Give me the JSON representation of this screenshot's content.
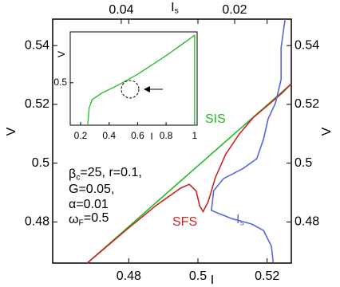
{
  "chart_data": [
    {
      "type": "line",
      "x_label": "I",
      "x2_label": {
        "text": "I",
        "sub": "s"
      },
      "y_label": "V",
      "xlim": [
        0.458,
        0.527
      ],
      "xticks": [
        0.48,
        0.5,
        0.52
      ],
      "x2lim": [
        0.0521,
        0.01
      ],
      "x2ticks": [
        0.04,
        0.02
      ],
      "ylim": [
        0.466,
        0.549
      ],
      "yticks": [
        0.54,
        0.52,
        0.5,
        0.48
      ],
      "series": [
        {
          "name": "SIS",
          "color": "#22bb22",
          "x": [
            0.468,
            0.527
          ],
          "values": [
            0.466,
            0.527
          ]
        },
        {
          "name": "SFS",
          "color": "#cc2222",
          "x": [
            0.468,
            0.48,
            0.488,
            0.492,
            0.495,
            0.4975,
            0.4995,
            0.5005,
            0.5015,
            0.503,
            0.505,
            0.508,
            0.512,
            0.516,
            0.52,
            0.524,
            0.527
          ],
          "values": [
            0.466,
            0.478,
            0.4857,
            0.489,
            0.4915,
            0.4928,
            0.4905,
            0.4855,
            0.4835,
            0.487,
            0.495,
            0.503,
            0.51,
            0.5155,
            0.5195,
            0.5235,
            0.527
          ]
        },
        {
          "name": "I",
          "name_sub": "s",
          "color": "#5566dd",
          "axis": "x2",
          "x": [
            0.0111,
            0.0118,
            0.0118,
            0.0128,
            0.0141,
            0.0149,
            0.0161,
            0.0185,
            0.022,
            0.0237,
            0.0241,
            0.0206,
            0.017,
            0.0149,
            0.0135,
            0.0132
          ],
          "values": [
            0.549,
            0.5393,
            0.5285,
            0.5204,
            0.515,
            0.5082,
            0.5015,
            0.4982,
            0.4947,
            0.4906,
            0.4839,
            0.4812,
            0.4793,
            0.4771,
            0.4717,
            0.4663
          ]
        }
      ],
      "params": [
        {
          "symbol": "β",
          "sub": "c",
          "text": "=25, r=0.1,"
        },
        {
          "symbol": "G",
          "sub": "",
          "text": "=0.05,"
        },
        {
          "symbol": "α",
          "sub": "",
          "text": "=0.01"
        },
        {
          "symbol": "ω",
          "sub": "F",
          "text": "=0.5"
        }
      ]
    },
    {
      "type": "line",
      "x_label": "I",
      "y_label": "V",
      "xlim": [
        0.127,
        1.018
      ],
      "xticks": [
        0.2,
        0.4,
        0.6,
        0.8,
        1
      ],
      "ylim": [
        0,
        1.1
      ],
      "yticks": [
        0.5
      ],
      "series": [
        {
          "color": "#22bb22",
          "x": [
            0.25,
            0.26,
            0.28,
            0.35,
            0.45,
            0.6,
            0.8,
            1,
            1
          ],
          "values": [
            0,
            0.2,
            0.3,
            0.38,
            0.46,
            0.6,
            0.82,
            1.06,
            0
          ]
        }
      ]
    }
  ]
}
